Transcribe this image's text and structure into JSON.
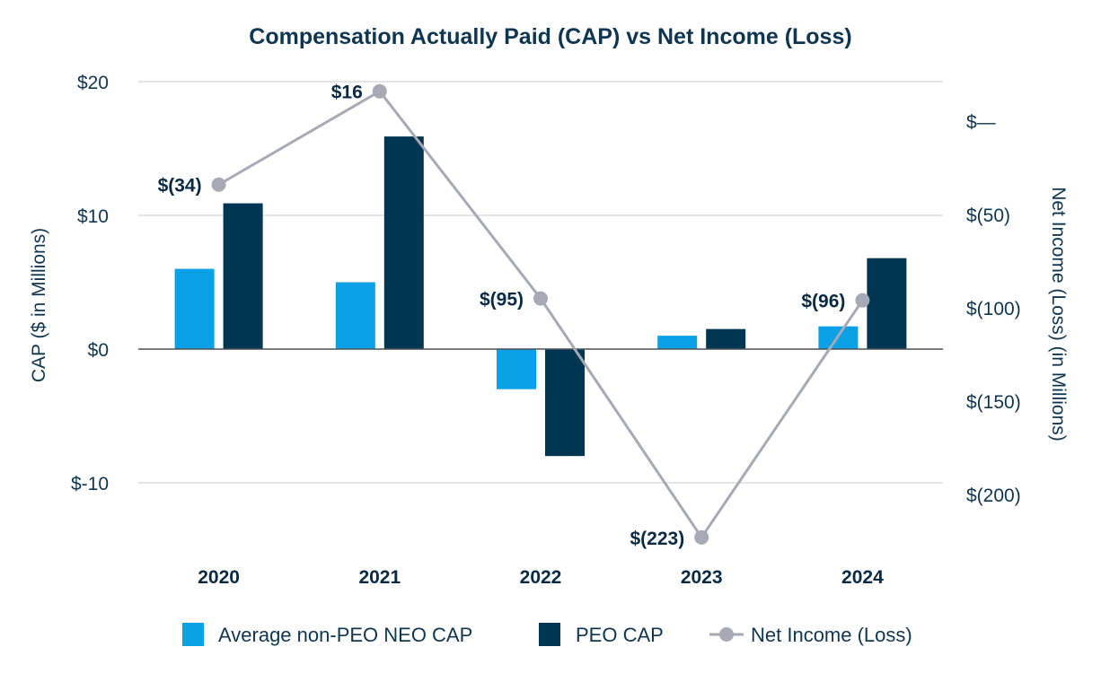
{
  "chart_data": {
    "type": "bar",
    "title": "Compensation Actually Paid (CAP) vs Net Income (Loss)",
    "categories": [
      "2020",
      "2021",
      "2022",
      "2023",
      "2024"
    ],
    "series": [
      {
        "name": "Average non-PEO NEO CAP",
        "type": "bar",
        "axis": "left",
        "color": "#0aa0e6",
        "values": [
          6.0,
          5.0,
          -3.0,
          1.0,
          1.7
        ]
      },
      {
        "name": "PEO CAP",
        "type": "bar",
        "axis": "left",
        "color": "#003652",
        "values": [
          10.9,
          15.9,
          -8.0,
          1.5,
          6.8
        ]
      },
      {
        "name": "Net Income (Loss)",
        "type": "line",
        "axis": "right",
        "color": "#a7a9b4",
        "values": [
          -34,
          16,
          -95,
          -223,
          -96
        ],
        "data_labels": [
          "$(34)",
          "$16",
          "$(95)",
          "$(223)",
          "$(96)"
        ]
      }
    ],
    "left_axis": {
      "label": "CAP ($ in Millions)",
      "range": [
        -15,
        20
      ],
      "ticks": [
        20,
        10,
        0,
        -10
      ],
      "tick_labels": [
        "$20",
        "$10",
        "$0",
        "$-10"
      ]
    },
    "right_axis": {
      "label": "Net Income (Loss) (in Millions)",
      "range": [
        -245,
        25
      ],
      "ticks": [
        0,
        -50,
        -100,
        -150,
        -200
      ],
      "tick_labels": [
        "$—",
        "$(50)",
        "$(100)",
        "$(150)",
        "$(200)"
      ]
    },
    "grid": true,
    "legend": {
      "position": "bottom",
      "entries": [
        "Average non-PEO NEO CAP",
        "PEO CAP",
        "Net Income (Loss)"
      ]
    }
  }
}
